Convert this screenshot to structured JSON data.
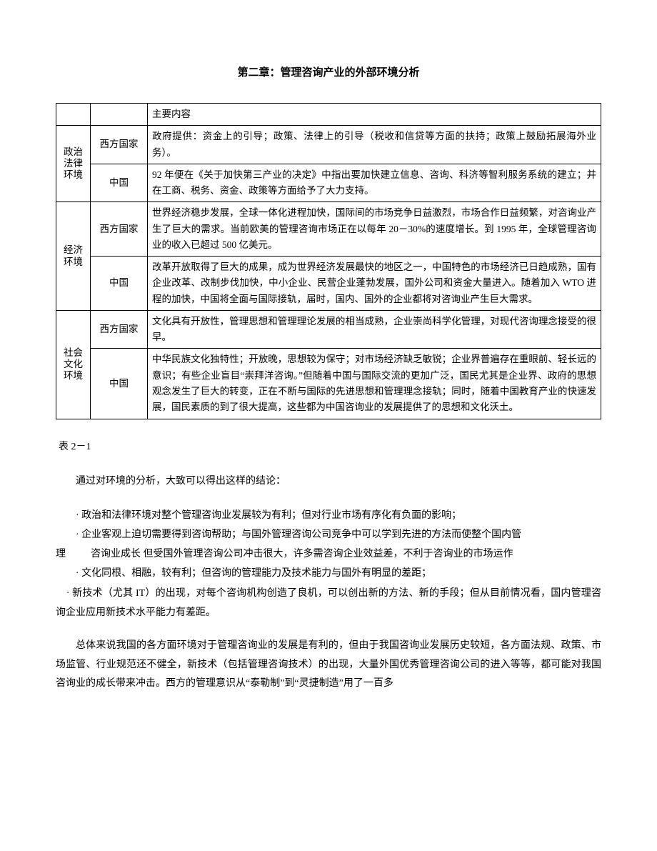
{
  "chapter_title": "第二章：管理咨询产业的外部环境分析",
  "table": {
    "header_content": "主要内容",
    "env1": {
      "label": "政治法律环境",
      "region_west": "西方国家",
      "content_west": "政府提供：资金上的引导；政策、法律上的引导（税收和信贷等方面的扶持；政策上鼓励拓展海外业务）。",
      "region_cn": "中国",
      "content_cn": "92 年便在《关于加快第三产业的决定》中指出要加快建立信息、咨询、科济等智利服务系统的建立；并在工商、税务、资金、政策等方面给予了大力支持。"
    },
    "env2": {
      "label": "经济环境",
      "region_west": "西方国家",
      "content_west": "世界经济稳步发展，全球一体化进程加快，国际间的市场竞争日益激烈，市场合作日益频繁，对咨询业产生了巨大的需求。当前欧美的管理咨询市场正在以每年 20－30%的速度增长。到 1995 年，全球管理咨询业的收入已超过 500 亿美元。",
      "region_cn": "中国",
      "content_cn": "改革开放取得了巨大的成果，成为世界经济发展最快的地区之一，中国特色的市场经济已日趋成熟，国有企业改革、改制步伐加快，中小企业、民营企业蓬勃发展，国外公司和资金大量进入。随着加入 WTO 进程的加快，中国将全面与国际接轨，届时，国内、国外的企业都将对咨询业产生巨大需求。"
    },
    "env3": {
      "label": "社会文化环境",
      "region_west": "西方国家",
      "content_west": "文化具有开放性，管理思想和管理理论发展的相当成熟，企业崇尚科学化管理，对现代咨询理念接受的很早。",
      "region_cn": "中国",
      "content_cn": "中华民族文化独特性；开放晚，思想较为保守；对市场经济缺乏敏锐；企业界普遍存在重眼前、轻长远的意识；有些企业盲目“崇拜洋咨询。”但随着中国与国际交流的更加广泛，国民尤其是企业界、政府的思想观念发生了巨大的转变，正在不断与国际的先进思想和管理理念接轨；同时，随着中国教育产业的快速发展，国民素质的到了很大提高，这些都为中国咨询业的发展提供了的思想和文化沃土。"
    }
  },
  "table_label": "表 2－1",
  "intro_para": "通过对环境的分析，大致可以得出这样的结论：",
  "bullets": {
    "b1": "· 政治和法律环境对整个管理咨询业发展较为有利；但对行业市场有序化有负面的影响；",
    "b2": "· 企业客观上迫切需要得到咨询帮助；与国外管理咨询公司竞争中可以学到先进的方法而使整个国内管",
    "b3_left": "理",
    "b3_right": "咨询业成长 但受国外管理咨询公司冲击很大，许多需咨询企业效益差，不利于咨询业的市场运作",
    "b4": "· 文化同根、相融，较有利；但咨询的管理能力及技术能力与国外有明显的差距；",
    "b5": "· 新技术（尤其 IT）的出现，对每个咨询机构创造了良机，可以创出新的方法、新的手段；但从目前情况看，国内管理咨询企业应用新技术水平能力有差距。"
  },
  "final_para": "总体来说我国的各方面环境对于管理咨询业的发展是有利的，但由于我国咨询业发展历史较短，各方面法规、政策、市场监管、行业规范还不健全，新技术（包括管理咨询技术）的出现，大量外国优秀管理咨询公司的进入等等，都可能对我国咨询业的成长带来冲击。西方的管理意识从“泰勒制”到“灵捷制造”用了一百多"
}
